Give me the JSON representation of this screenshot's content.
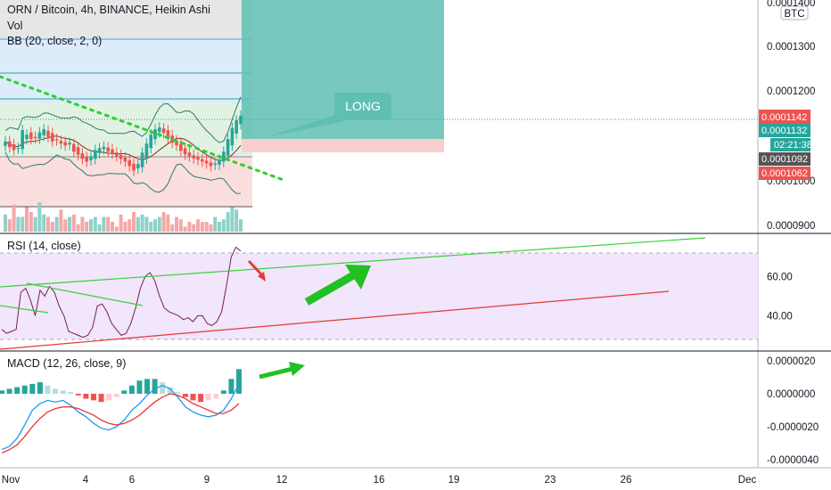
{
  "header": {
    "symbol_title": "ORN / Bitcoin, 4h, BINANCE, Heikin Ashi",
    "vol_label": "Vol",
    "bb_label": "BB (20, close, 2, 0)",
    "currency": "BTC"
  },
  "annotation": {
    "long_label": "LONG"
  },
  "price_tags": {
    "last": "0.0001142",
    "bb_upper": "0.0001132",
    "countdown": "02:21:38",
    "bb_mid": "0.0001092",
    "bb_lower": "0.0001062"
  },
  "colors": {
    "up": "#26a69a",
    "down": "#ef5350",
    "long_box": "#5fbfb3",
    "stop_box": "#f8cfcf",
    "rsi_band": "#f1e6fb",
    "rsi_line": "#7b1f4e",
    "macd_line": "#2196f3",
    "signal_line": "#e53935",
    "green_arrow": "#22c022",
    "red_arrow": "#e53935"
  },
  "chart_data": [
    {
      "type": "candlestick",
      "title": "ORN / Bitcoin, 4h, BINANCE, Heikin Ashi",
      "ylim": [
        8.8e-05,
        0.00014
      ],
      "y_ticks": [
        "0.0001400",
        "0.0001300",
        "0.0001200",
        "0.0001000",
        "0.0000900"
      ],
      "x_ticks": [
        "Nov",
        "4",
        "6",
        "9",
        "12",
        "16",
        "19",
        "23",
        "26",
        "Dec"
      ],
      "close": [
        0.0001085,
        0.0001072,
        0.0001066,
        0.000107,
        0.000111,
        0.00011,
        0.000109,
        0.0001092,
        0.0001105,
        0.0001112,
        0.0001095,
        0.0001085,
        0.0001087,
        0.000108,
        0.0001076,
        0.0001082,
        0.0001062,
        0.0001055,
        0.0001046,
        0.000104,
        0.0001052,
        0.0001066,
        0.000107,
        0.0001073,
        0.0001062,
        0.0001058,
        0.0001052,
        0.0001046,
        0.000104,
        0.000103,
        0.000102,
        0.0001035,
        0.000106,
        0.000108,
        0.00011,
        0.0001112,
        0.0001116,
        0.0001104,
        0.0001092,
        0.0001082,
        0.0001076,
        0.0001064,
        0.0001056,
        0.0001052,
        0.0001047,
        0.0001044,
        0.000104,
        0.0001036,
        0.000103,
        0.0001036,
        0.0001044,
        0.0001062,
        0.000109,
        0.0001115,
        0.0001132,
        0.0001142
      ],
      "volume_relative": [
        0.35,
        0.25,
        0.55,
        0.3,
        0.3,
        0.5,
        0.4,
        0.3,
        0.6,
        0.35,
        0.3,
        0.2,
        0.3,
        0.45,
        0.25,
        0.3,
        0.35,
        0.15,
        0.3,
        0.2,
        0.25,
        0.3,
        0.15,
        0.3,
        0.3,
        0.2,
        0.1,
        0.35,
        0.2,
        0.25,
        0.4,
        0.3,
        0.35,
        0.3,
        0.2,
        0.25,
        0.3,
        0.4,
        0.35,
        0.15,
        0.3,
        0.25,
        0.1,
        0.2,
        0.15,
        0.25,
        0.2,
        0.2,
        0.15,
        0.3,
        0.2,
        0.25,
        0.4,
        0.5,
        0.45,
        0.25
      ],
      "indicators": {
        "bb_upper_last": 0.0001132,
        "bb_mid_last": 0.0001092,
        "bb_lower_last": 0.0001062
      },
      "long_position": {
        "label": "LONG"
      },
      "grid": true
    },
    {
      "type": "line",
      "title": "RSI (14, close)",
      "y_ticks": [
        "60.00",
        "40.00"
      ],
      "ylim": [
        22,
        82
      ],
      "band": [
        30,
        70
      ],
      "values": [
        33,
        31,
        32,
        33,
        52,
        54,
        48,
        40,
        53,
        50,
        55,
        52,
        45,
        40,
        32,
        31,
        30,
        29,
        30,
        34,
        45,
        46,
        42,
        36,
        33,
        30,
        31,
        36,
        44,
        54,
        60,
        62,
        58,
        50,
        44,
        42,
        41,
        40,
        38,
        39,
        37,
        40,
        40,
        36,
        35,
        37,
        42,
        55,
        70,
        75,
        73
      ]
    },
    {
      "type": "line",
      "title": "MACD (12, 26, close, 9)",
      "y_ticks": [
        "0.0000020",
        "0.0000000",
        "-0.0000020",
        "-0.0000040"
      ],
      "ylim": [
        -4.5e-06,
        2.6e-06
      ],
      "series": [
        {
          "values": [
            -3.4e-06,
            -3.2e-06,
            -2.7e-06,
            -1.9e-06,
            -1e-06,
            -6e-07,
            -4e-07,
            -5e-07,
            -4e-07,
            -7e-07,
            -1.1e-06,
            -1.4e-06,
            -1.8e-06,
            -2.1e-06,
            -2.2e-06,
            -2e-06,
            -1.6e-06,
            -1e-06,
            -6e-07,
            -1e-07,
            3e-07,
            5e-07,
            3e-07,
            -2e-07,
            -8e-07,
            -1.1e-06,
            -1.3e-06,
            -1.4e-06,
            -1.3e-06,
            -1e-06,
            -3e-07,
            6e-07
          ]
        },
        {
          "values": [
            -3.6e-06,
            -3.4e-06,
            -3.1e-06,
            -2.6e-06,
            -2e-06,
            -1.5e-06,
            -1.1e-06,
            -9e-07,
            -8e-07,
            -8e-07,
            -9e-07,
            -1.1e-06,
            -1.3e-06,
            -1.6e-06,
            -1.8e-06,
            -1.9e-06,
            -1.8e-06,
            -1.6e-06,
            -1.3e-06,
            -9e-07,
            -5e-07,
            -2e-07,
            0.0,
            -1e-07,
            -3e-07,
            -6e-07,
            -8e-07,
            -1e-06,
            -1.2e-06,
            -1.2e-06,
            -1e-06,
            -6e-07
          ]
        }
      ],
      "histogram": [
        2e-07,
        3e-07,
        4e-07,
        5e-07,
        6e-07,
        7e-07,
        5e-07,
        3e-07,
        2e-07,
        1e-07,
        -1e-07,
        -3e-07,
        -4e-07,
        -5e-07,
        -4e-07,
        -2e-07,
        2e-07,
        5e-07,
        8e-07,
        9e-07,
        9e-07,
        7e-07,
        4e-07,
        1e-07,
        -2e-07,
        -4e-07,
        -5e-07,
        -4e-07,
        -3e-07,
        2e-07,
        9e-07,
        1.5e-06
      ]
    }
  ]
}
